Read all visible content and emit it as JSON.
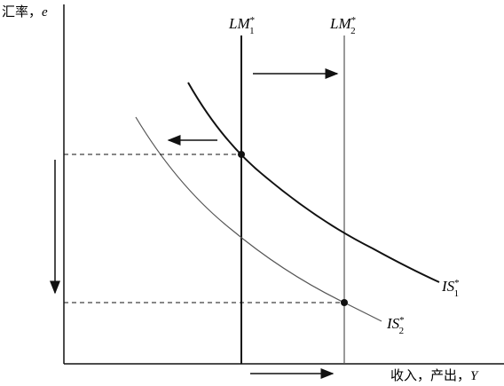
{
  "axes": {
    "y_label": {
      "text": "汇率，",
      "var": "e"
    },
    "x_label": {
      "text": "收入，产出，",
      "var": "Y"
    }
  },
  "curves": [
    {
      "base": "LM",
      "sup": "*",
      "sub": "1"
    },
    {
      "base": "LM",
      "sup": "*",
      "sub": "2"
    },
    {
      "base": "IS",
      "sup": "*",
      "sub": "1"
    },
    {
      "base": "IS",
      "sup": "*",
      "sub": "2"
    }
  ]
}
